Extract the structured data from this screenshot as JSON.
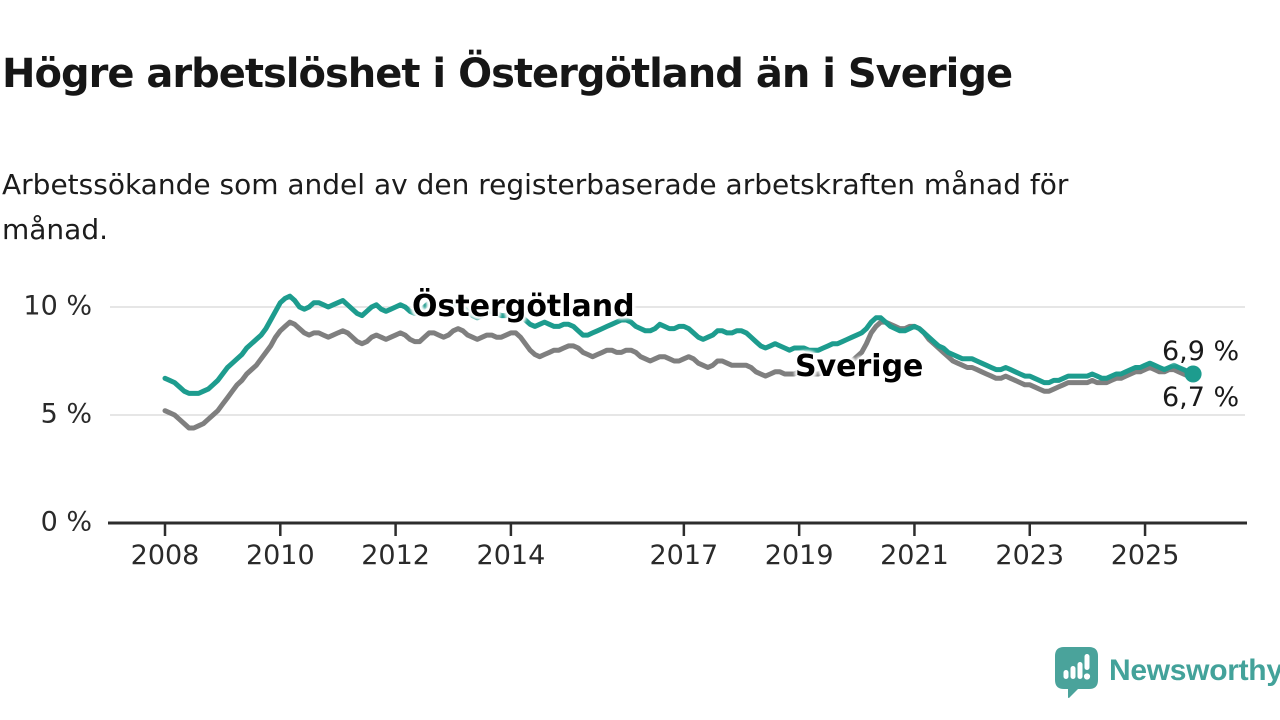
{
  "header": {
    "title": "Högre arbetslöshet i Östergötland än i Sverige",
    "subtitle": "Arbetssökande som andel av den registerbaserade arbetskraften månad för månad."
  },
  "colors": {
    "ostergotland": "#1d9c8e",
    "sverige": "#7f7f7f",
    "gridline": "#d8d8d8",
    "axis": "#2d2d2d",
    "logo_teal": "#4aa39b"
  },
  "annotations": {
    "ostergotland_label": "Östergötland",
    "sverige_label": "Sverige",
    "end_value_ostergotland": "6,9 %",
    "end_value_sverige": "6,7 %"
  },
  "logo": {
    "text": "Newsworthy",
    "icon": "speech-bubble-bar-chart-icon"
  },
  "chart_data": {
    "type": "line",
    "unit": "percent",
    "frequency": "monthly",
    "x_start": "2008-01",
    "x_end": "2025-11",
    "ylim": [
      0,
      11.2
    ],
    "grid": "horizontal",
    "x_axis": {
      "start_year": 2008,
      "ticks": [
        2008,
        2010,
        2012,
        2014,
        2017,
        2019,
        2021,
        2023,
        2025
      ]
    },
    "y_axis": {
      "ticks": [
        {
          "value": 10,
          "label": "10 %"
        },
        {
          "value": 5,
          "label": "5 %"
        },
        {
          "value": 0,
          "label": "0 %"
        }
      ]
    },
    "series": [
      {
        "name": "Östergötland",
        "color": "#1d9c8e",
        "end_dot": true,
        "values": [
          6.7,
          6.6,
          6.5,
          6.3,
          6.1,
          6.0,
          6.0,
          6.0,
          6.1,
          6.2,
          6.4,
          6.6,
          6.9,
          7.2,
          7.4,
          7.6,
          7.8,
          8.1,
          8.3,
          8.5,
          8.7,
          9.0,
          9.4,
          9.8,
          10.2,
          10.4,
          10.5,
          10.3,
          10.0,
          9.9,
          10.0,
          10.2,
          10.2,
          10.1,
          10.0,
          10.1,
          10.2,
          10.3,
          10.1,
          9.9,
          9.7,
          9.6,
          9.8,
          10.0,
          10.1,
          9.9,
          9.8,
          9.9,
          10.0,
          10.1,
          10.0,
          9.8,
          9.7,
          9.8,
          10.0,
          10.2,
          10.2,
          10.1,
          10.0,
          10.0,
          10.1,
          10.2,
          10.0,
          9.8,
          9.6,
          9.5,
          9.6,
          9.8,
          9.8,
          9.7,
          9.6,
          9.6,
          9.7,
          9.8,
          9.6,
          9.4,
          9.2,
          9.1,
          9.2,
          9.3,
          9.2,
          9.1,
          9.1,
          9.2,
          9.2,
          9.1,
          8.9,
          8.7,
          8.7,
          8.8,
          8.9,
          9.0,
          9.1,
          9.2,
          9.3,
          9.4,
          9.4,
          9.3,
          9.1,
          9.0,
          8.9,
          8.9,
          9.0,
          9.2,
          9.1,
          9.0,
          9.0,
          9.1,
          9.1,
          9.0,
          8.8,
          8.6,
          8.5,
          8.6,
          8.7,
          8.9,
          8.9,
          8.8,
          8.8,
          8.9,
          8.9,
          8.8,
          8.6,
          8.4,
          8.2,
          8.1,
          8.2,
          8.3,
          8.2,
          8.1,
          8.0,
          8.1,
          8.1,
          8.1,
          8.0,
          8.0,
          8.0,
          8.1,
          8.2,
          8.3,
          8.3,
          8.4,
          8.5,
          8.6,
          8.7,
          8.8,
          9.0,
          9.3,
          9.5,
          9.5,
          9.3,
          9.1,
          9.0,
          8.9,
          8.9,
          9.0,
          9.1,
          9.0,
          8.8,
          8.6,
          8.4,
          8.2,
          8.1,
          7.9,
          7.8,
          7.7,
          7.6,
          7.6,
          7.6,
          7.5,
          7.4,
          7.3,
          7.2,
          7.1,
          7.1,
          7.2,
          7.1,
          7.0,
          6.9,
          6.8,
          6.8,
          6.7,
          6.6,
          6.5,
          6.5,
          6.6,
          6.6,
          6.7,
          6.8,
          6.8,
          6.8,
          6.8,
          6.8,
          6.9,
          6.8,
          6.7,
          6.7,
          6.8,
          6.9,
          6.9,
          7.0,
          7.1,
          7.2,
          7.2,
          7.3,
          7.4,
          7.3,
          7.2,
          7.1,
          7.2,
          7.3,
          7.2,
          7.1,
          7.0,
          6.9
        ]
      },
      {
        "name": "Sverige",
        "color": "#7f7f7f",
        "end_dot": false,
        "values": [
          5.2,
          5.1,
          5.0,
          4.8,
          4.6,
          4.4,
          4.4,
          4.5,
          4.6,
          4.8,
          5.0,
          5.2,
          5.5,
          5.8,
          6.1,
          6.4,
          6.6,
          6.9,
          7.1,
          7.3,
          7.6,
          7.9,
          8.2,
          8.6,
          8.9,
          9.1,
          9.3,
          9.2,
          9.0,
          8.8,
          8.7,
          8.8,
          8.8,
          8.7,
          8.6,
          8.7,
          8.8,
          8.9,
          8.8,
          8.6,
          8.4,
          8.3,
          8.4,
          8.6,
          8.7,
          8.6,
          8.5,
          8.6,
          8.7,
          8.8,
          8.7,
          8.5,
          8.4,
          8.4,
          8.6,
          8.8,
          8.8,
          8.7,
          8.6,
          8.7,
          8.9,
          9.0,
          8.9,
          8.7,
          8.6,
          8.5,
          8.6,
          8.7,
          8.7,
          8.6,
          8.6,
          8.7,
          8.8,
          8.8,
          8.6,
          8.3,
          8.0,
          7.8,
          7.7,
          7.8,
          7.9,
          8.0,
          8.0,
          8.1,
          8.2,
          8.2,
          8.1,
          7.9,
          7.8,
          7.7,
          7.8,
          7.9,
          8.0,
          8.0,
          7.9,
          7.9,
          8.0,
          8.0,
          7.9,
          7.7,
          7.6,
          7.5,
          7.6,
          7.7,
          7.7,
          7.6,
          7.5,
          7.5,
          7.6,
          7.7,
          7.6,
          7.4,
          7.3,
          7.2,
          7.3,
          7.5,
          7.5,
          7.4,
          7.3,
          7.3,
          7.3,
          7.3,
          7.2,
          7.0,
          6.9,
          6.8,
          6.9,
          7.0,
          7.0,
          6.9,
          6.9,
          6.9,
          7.0,
          7.0,
          6.9,
          6.9,
          6.9,
          7.0,
          7.1,
          7.2,
          7.2,
          7.3,
          7.4,
          7.5,
          7.7,
          7.9,
          8.3,
          8.8,
          9.1,
          9.3,
          9.3,
          9.2,
          9.1,
          9.0,
          9.0,
          9.1,
          9.1,
          9.0,
          8.8,
          8.5,
          8.3,
          8.1,
          7.9,
          7.7,
          7.5,
          7.4,
          7.3,
          7.2,
          7.2,
          7.1,
          7.0,
          6.9,
          6.8,
          6.7,
          6.7,
          6.8,
          6.7,
          6.6,
          6.5,
          6.4,
          6.4,
          6.3,
          6.2,
          6.1,
          6.1,
          6.2,
          6.3,
          6.4,
          6.5,
          6.5,
          6.5,
          6.5,
          6.5,
          6.6,
          6.5,
          6.5,
          6.5,
          6.6,
          6.7,
          6.7,
          6.8,
          6.9,
          7.0,
          7.0,
          7.1,
          7.2,
          7.1,
          7.0,
          7.0,
          7.1,
          7.1,
          7.0,
          6.9,
          6.8,
          6.7
        ]
      }
    ]
  }
}
